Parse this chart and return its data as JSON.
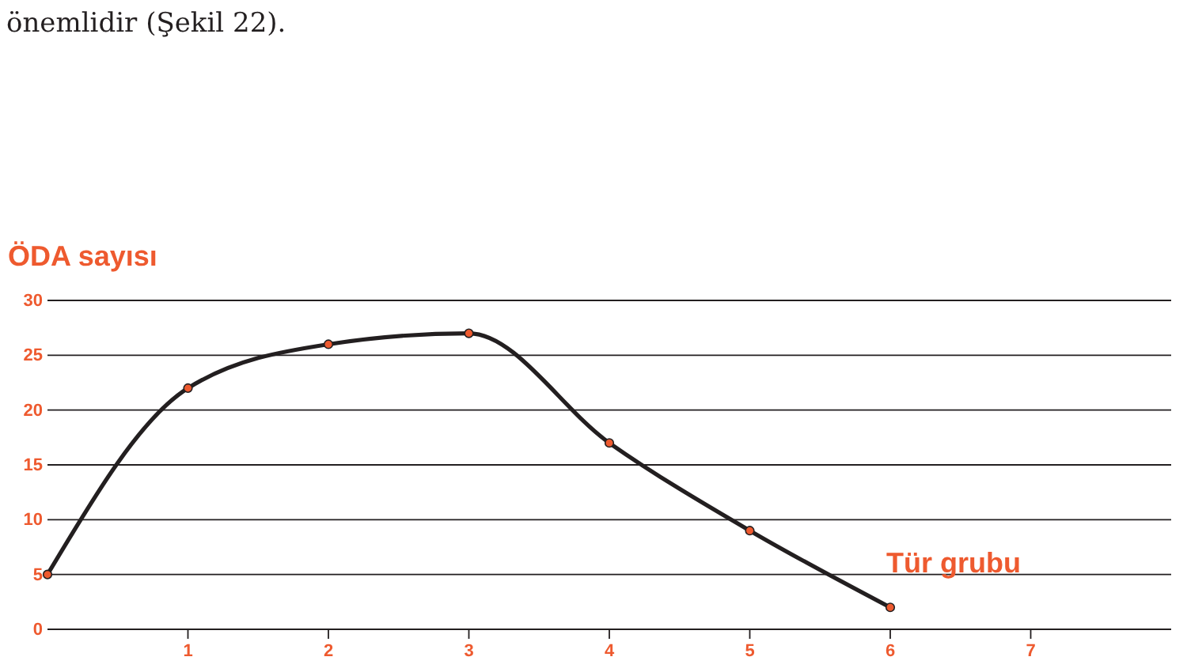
{
  "chart_data": {
    "type": "line",
    "xlabel": "Tür grubu",
    "ylabel": "ÖDA sayısı",
    "annotations": [
      "önemlidir (Şekil 22)."
    ],
    "x": [
      0,
      1,
      2,
      3,
      4,
      5,
      6
    ],
    "series": [
      {
        "color": "#231f20",
        "values": [
          5,
          22,
          26,
          27,
          17,
          9,
          2
        ]
      }
    ],
    "xlim": [
      0,
      8
    ],
    "xticks": [
      1,
      2,
      3,
      4,
      5,
      6,
      7
    ],
    "ylim": [
      0,
      30
    ],
    "yticks": [
      0,
      5,
      10,
      15,
      20,
      25,
      30
    ],
    "grid": "y",
    "marker": "circle",
    "line_style": "solid"
  }
}
